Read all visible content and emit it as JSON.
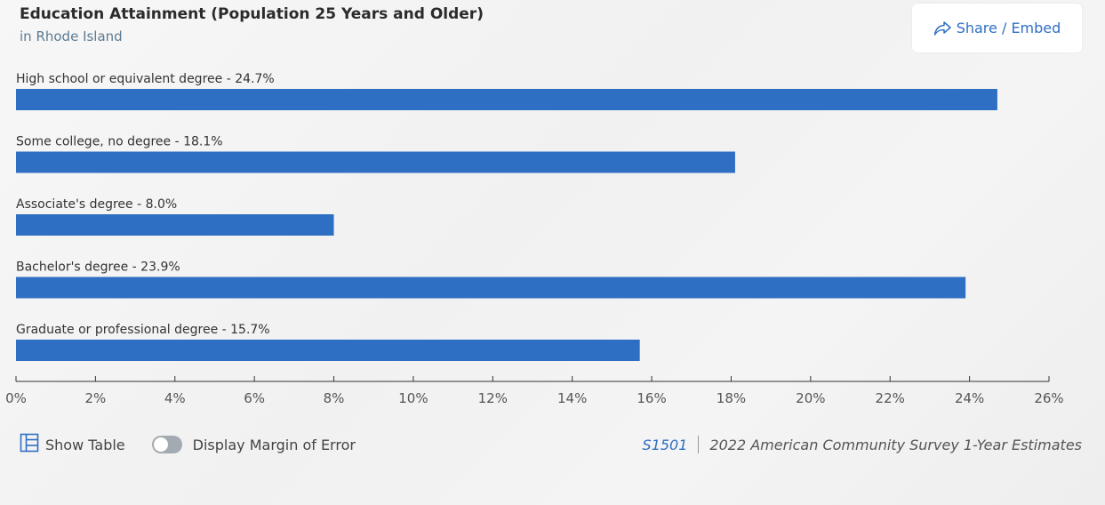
{
  "header": {
    "title": "Education Attainment (Population 25 Years and Older)",
    "subtitle": "in Rhode Island",
    "share_label": "Share / Embed"
  },
  "footer": {
    "show_table_label": "Show Table",
    "margin_toggle_label": "Display Margin of Error",
    "margin_toggle_on": false,
    "table_code": "S1501",
    "source": "2022 American Community Survey 1-Year Estimates"
  },
  "colors": {
    "bar": "#2f6fc3",
    "accent": "#2f6fc3"
  },
  "chart_data": {
    "type": "bar",
    "orientation": "horizontal",
    "categories": [
      "High school or equivalent degree",
      "Some college, no degree",
      "Associate's degree",
      "Bachelor's degree",
      "Graduate or professional degree"
    ],
    "values": [
      24.7,
      18.1,
      8.0,
      23.9,
      15.7
    ],
    "data_labels": [
      "High school or equivalent degree - 24.7%",
      "Some college, no degree - 18.1%",
      "Associate's degree - 8.0%",
      "Bachelor's degree - 23.9%",
      "Graduate or professional degree - 15.7%"
    ],
    "xlim": [
      0,
      26
    ],
    "x_ticks": [
      "0%",
      "2%",
      "4%",
      "6%",
      "8%",
      "10%",
      "12%",
      "14%",
      "16%",
      "18%",
      "20%",
      "22%",
      "24%",
      "26%"
    ],
    "grid": false,
    "legend": "none"
  }
}
